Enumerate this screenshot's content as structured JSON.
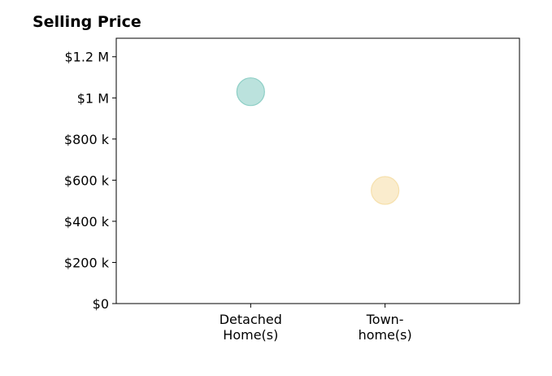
{
  "chart_data": {
    "type": "scatter",
    "title": "Selling Price",
    "xlabel": "",
    "ylabel": "",
    "categories": [
      [
        "Detached",
        "Home(s)"
      ],
      [
        "Town-",
        "home(s)"
      ]
    ],
    "x_positions": [
      1,
      2
    ],
    "xlim": [
      0,
      3
    ],
    "ylim": [
      0,
      1290000
    ],
    "yticks": [
      0,
      200000,
      400000,
      600000,
      800000,
      1000000,
      1200000
    ],
    "ytick_labels": [
      "$0",
      "$200 k",
      "$400 k",
      "$600 k",
      "$800 k",
      "$1 M",
      "$1.2 M"
    ],
    "points": [
      {
        "x": 1,
        "y": 1030000,
        "color": "#8ecfc6"
      },
      {
        "x": 2,
        "y": 550000,
        "color": "#f6e0ac"
      }
    ],
    "grid": false,
    "legend": "none"
  }
}
